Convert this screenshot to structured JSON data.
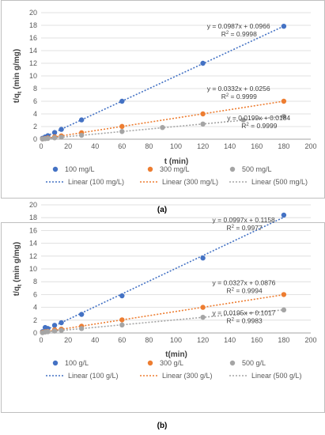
{
  "chart_data": [
    {
      "type": "scatter",
      "panel_label": "(a)",
      "xlabel": "t (min)",
      "ylabel_main": "t/q",
      "ylabel_sub": "t",
      "ylabel_unit": " (min g/mg)",
      "xlim": [
        0,
        200
      ],
      "ylim": [
        0,
        20
      ],
      "xticks": [
        0,
        20,
        40,
        60,
        80,
        100,
        120,
        140,
        160,
        180,
        200
      ],
      "yticks": [
        0,
        2,
        4,
        6,
        8,
        10,
        12,
        14,
        16,
        18,
        20
      ],
      "grid": "horizontal",
      "legend_position": "bottom",
      "series": [
        {
          "name": "100 mg/L",
          "color": "#4472c4",
          "x": [
            1,
            3,
            5,
            10,
            15,
            30,
            60,
            120,
            180
          ],
          "y": [
            0.15,
            0.35,
            0.55,
            1.05,
            1.55,
            3.05,
            6.0,
            12.0,
            17.85
          ],
          "fit_name": "Linear (100 mg/L)",
          "slope": 0.0987,
          "intercept": 0.0966,
          "eq_label": "y = 0.0987x + 0.0966",
          "r2_label": "0.9998",
          "eq_x": 123,
          "eq_y": 17.5
        },
        {
          "name": "300 mg/L",
          "color": "#ed7d31",
          "x": [
            1,
            3,
            5,
            10,
            15,
            30,
            60,
            120,
            180
          ],
          "y": [
            0.06,
            0.12,
            0.19,
            0.36,
            0.52,
            1.02,
            2.02,
            4.0,
            6.0
          ],
          "fit_name": "Linear (300 mg/L)",
          "slope": 0.0332,
          "intercept": 0.0256,
          "eq_label": "y = 0.0332x + 0.0256",
          "r2_label": "0.9999",
          "eq_x": 123,
          "eq_y": 7.6
        },
        {
          "name": "500 mg/L",
          "color": "#a5a5a5",
          "x": [
            1,
            3,
            5,
            10,
            15,
            30,
            60,
            90,
            120,
            150,
            180
          ],
          "y": [
            0.04,
            0.08,
            0.12,
            0.22,
            0.32,
            0.62,
            1.22,
            1.85,
            2.4,
            3.02,
            3.6
          ],
          "fit_name": "Linear (500 mg/L)",
          "slope": 0.0199,
          "intercept": 0.0184,
          "eq_label": "y = 0.0199x + 0.0184",
          "r2_label": "0.9999",
          "eq_x": 138,
          "eq_y": 3.0
        }
      ]
    },
    {
      "type": "scatter",
      "panel_label": "(b)",
      "xlabel": "t(min)",
      "ylabel_main": "t/q",
      "ylabel_sub": "t",
      "ylabel_unit": " (min g/mg)",
      "xlim": [
        0,
        200
      ],
      "ylim": [
        0,
        20
      ],
      "xticks": [
        0,
        20,
        40,
        60,
        80,
        100,
        120,
        140,
        160,
        180,
        200
      ],
      "yticks": [
        0,
        2,
        4,
        6,
        8,
        10,
        12,
        14,
        16,
        18,
        20
      ],
      "grid": "horizontal",
      "legend_position": "bottom",
      "series": [
        {
          "name": "100 g/L",
          "color": "#4472c4",
          "x": [
            1,
            3,
            5,
            10,
            15,
            30,
            60,
            120,
            180
          ],
          "y": [
            0.2,
            0.85,
            0.7,
            1.2,
            1.6,
            2.9,
            5.8,
            11.7,
            18.4
          ],
          "fit_name": "Linear (100 g/L)",
          "slope": 0.0997,
          "intercept": 0.1158,
          "eq_label": "y = 0.0997x + 0.1158",
          "r2_label": "0.9977",
          "eq_x": 127,
          "eq_y": 17.3
        },
        {
          "name": "300 g/L",
          "color": "#ed7d31",
          "x": [
            1,
            3,
            5,
            10,
            15,
            30,
            60,
            120,
            180
          ],
          "y": [
            0.1,
            0.2,
            0.25,
            0.5,
            0.6,
            1.05,
            2.05,
            4.0,
            6.0
          ],
          "fit_name": "Linear (300 g/L)",
          "slope": 0.0327,
          "intercept": 0.0876,
          "eq_label": "y = 0.0327x + 0.0876",
          "r2_label": "0.9994",
          "eq_x": 127,
          "eq_y": 7.5
        },
        {
          "name": "500 g/L",
          "color": "#a5a5a5",
          "x": [
            1,
            3,
            5,
            10,
            15,
            30,
            60,
            120,
            180
          ],
          "y": [
            0.05,
            0.15,
            0.2,
            0.3,
            0.4,
            0.7,
            1.25,
            2.45,
            3.6
          ],
          "fit_name": "Linear (500 g/L)",
          "slope": 0.0195,
          "intercept": 0.1017,
          "eq_label": "y = 0.0195x + 0.1017",
          "r2_label": "0.9983",
          "eq_x": 127,
          "eq_y": 2.8
        }
      ]
    }
  ]
}
